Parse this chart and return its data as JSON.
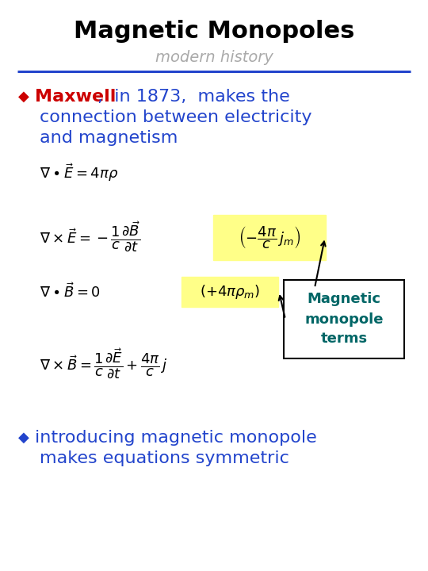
{
  "title": "Magnetic Monopoles",
  "subtitle": "modern history",
  "title_color": "#000000",
  "subtitle_color": "#aaaaaa",
  "line_color": "#2244cc",
  "bullet_color": "#cc0000",
  "bullet2_color": "#2244cc",
  "bullet_char": "◆",
  "maxwell_bold": "Maxwell",
  "maxwell_rest": ",  in 1873,  makes the",
  "line2": "connection between electricity",
  "line3": "and magnetism",
  "text_color": "#2244cc",
  "eq1": "$\\nabla \\bullet \\vec{E} = 4\\pi\\rho$",
  "eq2a": "$\\nabla \\times \\vec{E} = -\\dfrac{1}{c}\\dfrac{\\partial \\vec{B}}{\\partial t}$",
  "eq3a": "$\\nabla \\bullet \\vec{B} = 0$",
  "eq4a": "$\\nabla \\times \\vec{B} = \\dfrac{1}{c}\\dfrac{\\partial \\vec{E}}{\\partial t} + \\dfrac{4\\pi}{c}\\,j$",
  "hl1_text": "$\\left(-\\dfrac{4\\pi}{c}\\,j_m\\right)$",
  "hl2_text": "$\\left(+4\\pi\\rho_m\\right)$",
  "highlight_bg": "#ffff88",
  "box_text_color": "#006666",
  "box_text": "Magnetic\nmonopole\nterms",
  "b2line1": "introducing magnetic monopole",
  "b2line2": "makes equations symmetric",
  "bg_color": "#ffffff",
  "fig_w": 5.4,
  "fig_h": 7.2,
  "dpi": 100
}
